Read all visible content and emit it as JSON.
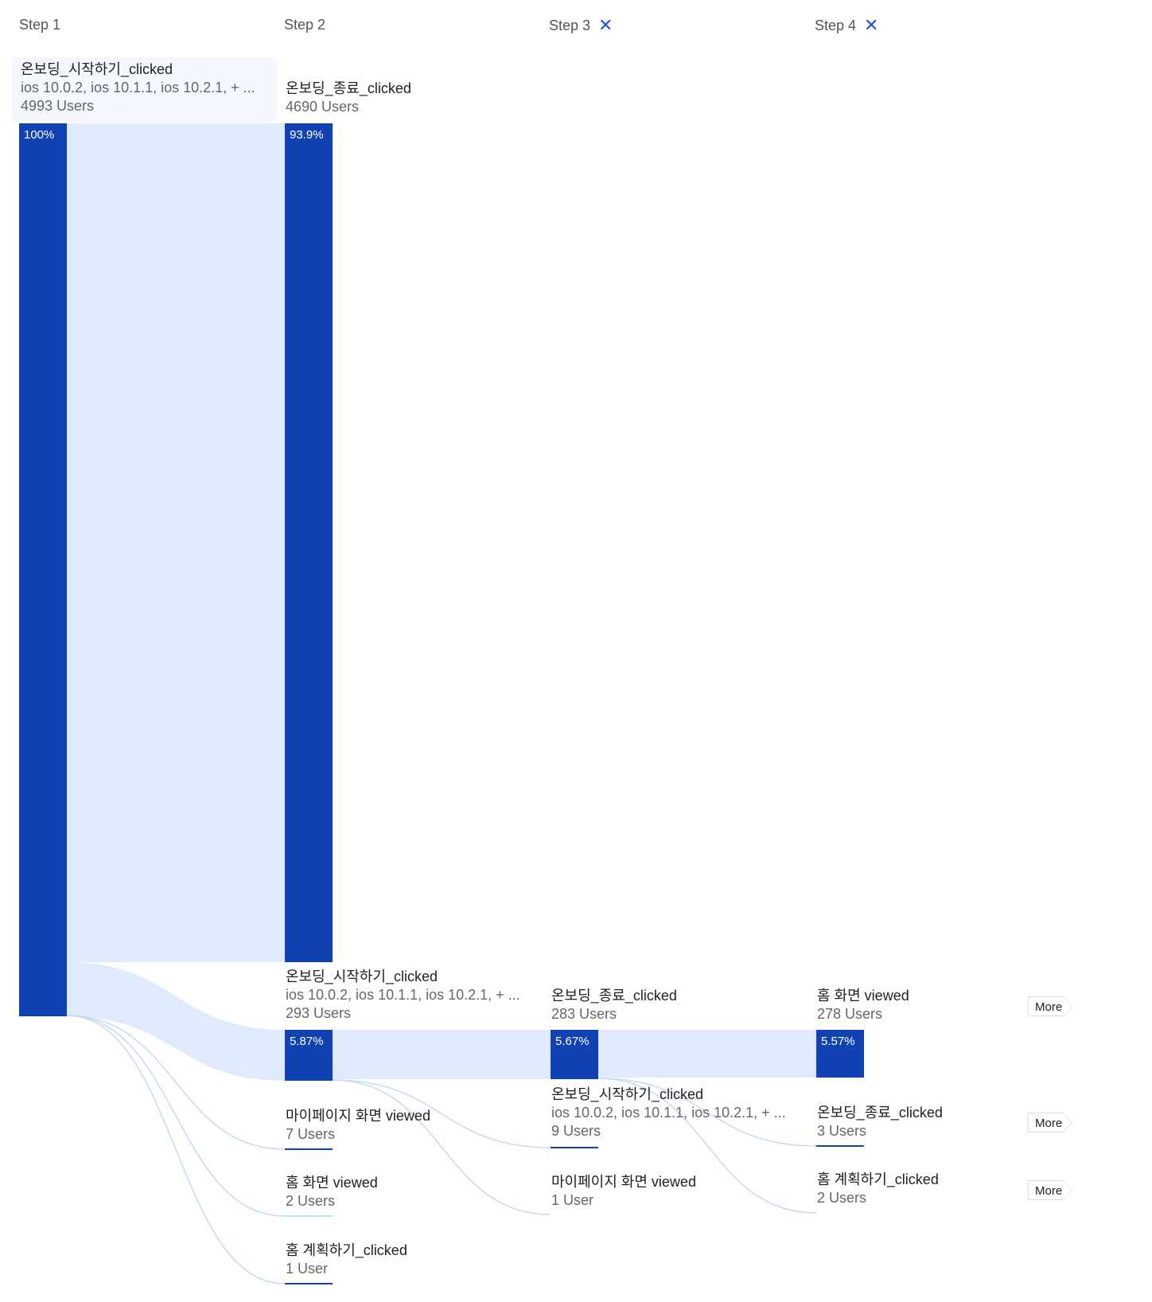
{
  "steps": [
    {
      "label": "Step 1",
      "removable": false
    },
    {
      "label": "Step 2",
      "removable": false
    },
    {
      "label": "Step 3",
      "removable": true,
      "remove_icon": "close-icon"
    },
    {
      "label": "Step 4",
      "removable": true,
      "remove_icon": "close-icon"
    }
  ],
  "colors": {
    "bar": "#1142b3",
    "flow": "#dfeafc",
    "line": "#c5d9f5",
    "remove_icon": "#1a56db"
  },
  "nodes": {
    "s1": {
      "title": "온보딩_시작하기_clicked",
      "sub": "ios 10.0.2, ios 10.1.1, ios 10.2.1, + ...",
      "users": "4993 Users",
      "pct": "100%"
    },
    "s2a": {
      "title": "온보딩_종료_clicked",
      "users": "4690 Users",
      "pct": "93.9%"
    },
    "s2b": {
      "title": "온보딩_시작하기_clicked",
      "sub": "ios 10.0.2, ios 10.1.1, ios 10.2.1, + ...",
      "users": "293 Users",
      "pct": "5.87%"
    },
    "s2c": {
      "title": "마이페이지 화면 viewed",
      "users": "7 Users"
    },
    "s2d": {
      "title": "홈 화면 viewed",
      "users": "2 Users"
    },
    "s2e": {
      "title": "홈 계획하기_clicked",
      "users": "1 User"
    },
    "s3a": {
      "title": "온보딩_종료_clicked",
      "users": "283 Users",
      "pct": "5.67%"
    },
    "s3b": {
      "title": "온보딩_시작하기_clicked",
      "sub": "ios 10.0.2, ios 10.1.1, ios 10.2.1, + ...",
      "users": "9 Users"
    },
    "s3c": {
      "title": "마이페이지 화면 viewed",
      "users": "1 User"
    },
    "s4a": {
      "title": "홈 화면 viewed",
      "users": "278 Users",
      "pct": "5.57%"
    },
    "s4b": {
      "title": "온보딩_종료_clicked",
      "users": "3 Users"
    },
    "s4c": {
      "title": "홈 계획하기_clicked",
      "users": "2 Users"
    }
  },
  "more_label": "More"
}
